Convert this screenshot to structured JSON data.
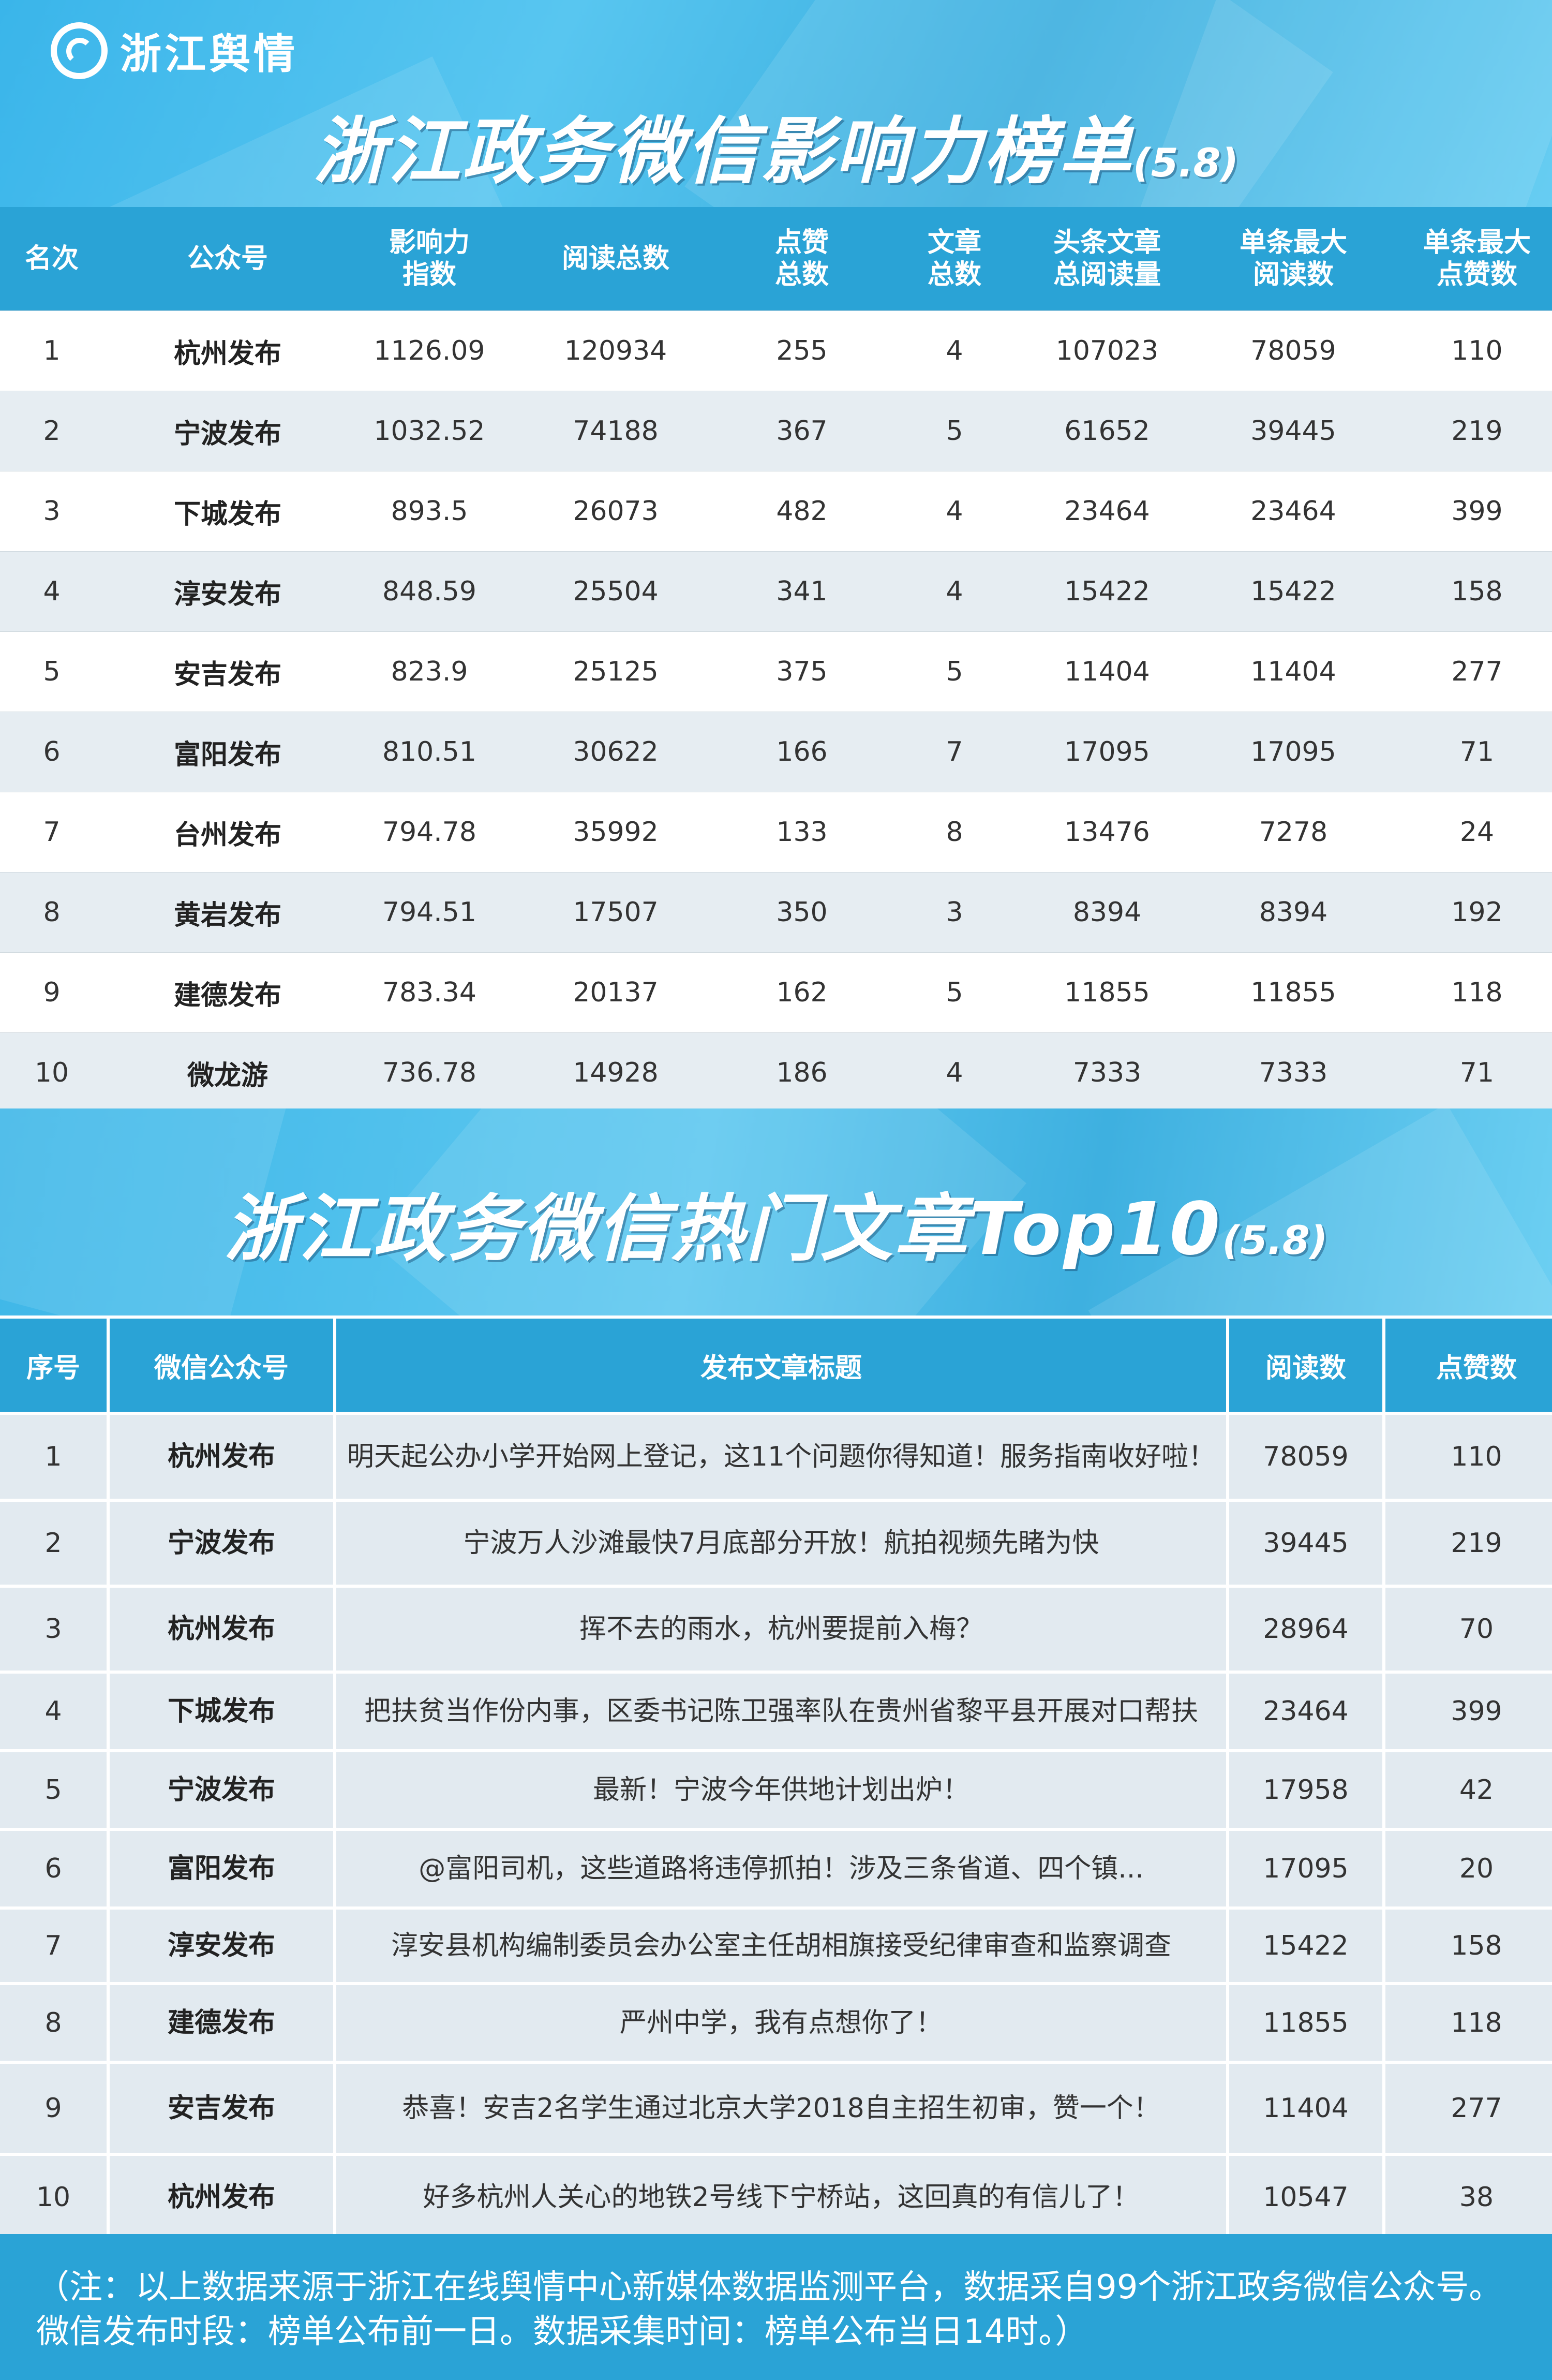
{
  "logo": {
    "text": "浙江舆情"
  },
  "ranking": {
    "title": "浙江政务微信影响力榜单",
    "date": "(5.8)",
    "headers": {
      "rank": "名次",
      "account": "公众号",
      "influence_l1": "影响力",
      "influence_l2": "指数",
      "reads": "阅读总数",
      "likes_l1": "点赞",
      "likes_l2": "总数",
      "articles_l1": "文章",
      "articles_l2": "总数",
      "headline_l1": "头条文章",
      "headline_l2": "总阅读量",
      "maxread_l1": "单条最大",
      "maxread_l2": "阅读数",
      "maxlike_l1": "单条最大",
      "maxlike_l2": "点赞数"
    },
    "rows": [
      {
        "rank": "1",
        "account": "杭州发布",
        "influence": "1126.09",
        "reads": "120934",
        "likes": "255",
        "articles": "4",
        "headline": "107023",
        "maxread": "78059",
        "maxlike": "110"
      },
      {
        "rank": "2",
        "account": "宁波发布",
        "influence": "1032.52",
        "reads": "74188",
        "likes": "367",
        "articles": "5",
        "headline": "61652",
        "maxread": "39445",
        "maxlike": "219"
      },
      {
        "rank": "3",
        "account": "下城发布",
        "influence": "893.5",
        "reads": "26073",
        "likes": "482",
        "articles": "4",
        "headline": "23464",
        "maxread": "23464",
        "maxlike": "399"
      },
      {
        "rank": "4",
        "account": "淳安发布",
        "influence": "848.59",
        "reads": "25504",
        "likes": "341",
        "articles": "4",
        "headline": "15422",
        "maxread": "15422",
        "maxlike": "158"
      },
      {
        "rank": "5",
        "account": "安吉发布",
        "influence": "823.9",
        "reads": "25125",
        "likes": "375",
        "articles": "5",
        "headline": "11404",
        "maxread": "11404",
        "maxlike": "277"
      },
      {
        "rank": "6",
        "account": "富阳发布",
        "influence": "810.51",
        "reads": "30622",
        "likes": "166",
        "articles": "7",
        "headline": "17095",
        "maxread": "17095",
        "maxlike": "71"
      },
      {
        "rank": "7",
        "account": "台州发布",
        "influence": "794.78",
        "reads": "35992",
        "likes": "133",
        "articles": "8",
        "headline": "13476",
        "maxread": "7278",
        "maxlike": "24"
      },
      {
        "rank": "8",
        "account": "黄岩发布",
        "influence": "794.51",
        "reads": "17507",
        "likes": "350",
        "articles": "3",
        "headline": "8394",
        "maxread": "8394",
        "maxlike": "192"
      },
      {
        "rank": "9",
        "account": "建德发布",
        "influence": "783.34",
        "reads": "20137",
        "likes": "162",
        "articles": "5",
        "headline": "11855",
        "maxread": "11855",
        "maxlike": "118"
      },
      {
        "rank": "10",
        "account": "微龙游",
        "influence": "736.78",
        "reads": "14928",
        "likes": "186",
        "articles": "4",
        "headline": "7333",
        "maxread": "7333",
        "maxlike": "71"
      }
    ]
  },
  "articles": {
    "title": "浙江政务微信热门文章Top10",
    "date": "(5.8)",
    "headers": {
      "no": "序号",
      "account": "微信公众号",
      "title": "发布文章标题",
      "reads": "阅读数",
      "likes": "点赞数"
    },
    "rows": [
      {
        "no": "1",
        "account": "杭州发布",
        "title": "明天起公办小学开始网上登记，这11个问题你得知道！服务指南收好啦！",
        "reads": "78059",
        "likes": "110"
      },
      {
        "no": "2",
        "account": "宁波发布",
        "title": "宁波万人沙滩最快7月底部分开放！航拍视频先睹为快",
        "reads": "39445",
        "likes": "219"
      },
      {
        "no": "3",
        "account": "杭州发布",
        "title": "挥不去的雨水，杭州要提前入梅？",
        "reads": "28964",
        "likes": "70"
      },
      {
        "no": "4",
        "account": "下城发布",
        "title": "把扶贫当作份内事，区委书记陈卫强率队在贵州省黎平县开展对口帮扶",
        "reads": "23464",
        "likes": "399"
      },
      {
        "no": "5",
        "account": "宁波发布",
        "title": "最新！宁波今年供地计划出炉！",
        "reads": "17958",
        "likes": "42"
      },
      {
        "no": "6",
        "account": "富阳发布",
        "title": "@富阳司机，这些道路将违停抓拍！涉及三条省道、四个镇...",
        "reads": "17095",
        "likes": "20"
      },
      {
        "no": "7",
        "account": "淳安发布",
        "title": "淳安县机构编制委员会办公室主任胡相旗接受纪律审查和监察调查",
        "reads": "15422",
        "likes": "158"
      },
      {
        "no": "8",
        "account": "建德发布",
        "title": "严州中学，我有点想你了！",
        "reads": "11855",
        "likes": "118"
      },
      {
        "no": "9",
        "account": "安吉发布",
        "title": "恭喜！安吉2名学生通过北京大学2018自主招生初审，赞一个！",
        "reads": "11404",
        "likes": "277"
      },
      {
        "no": "10",
        "account": "杭州发布",
        "title": "好多杭州人关心的地铁2号线下宁桥站，这回真的有信儿了！",
        "reads": "10547",
        "likes": "38"
      }
    ]
  },
  "footer": {
    "note": "（注：以上数据来源于浙江在线舆情中心新媒体数据监测平台，数据采自99个浙江政务微信公众号。微信发布时段：榜单公布前一日。数据采集时间：榜单公布当日14时。）"
  }
}
